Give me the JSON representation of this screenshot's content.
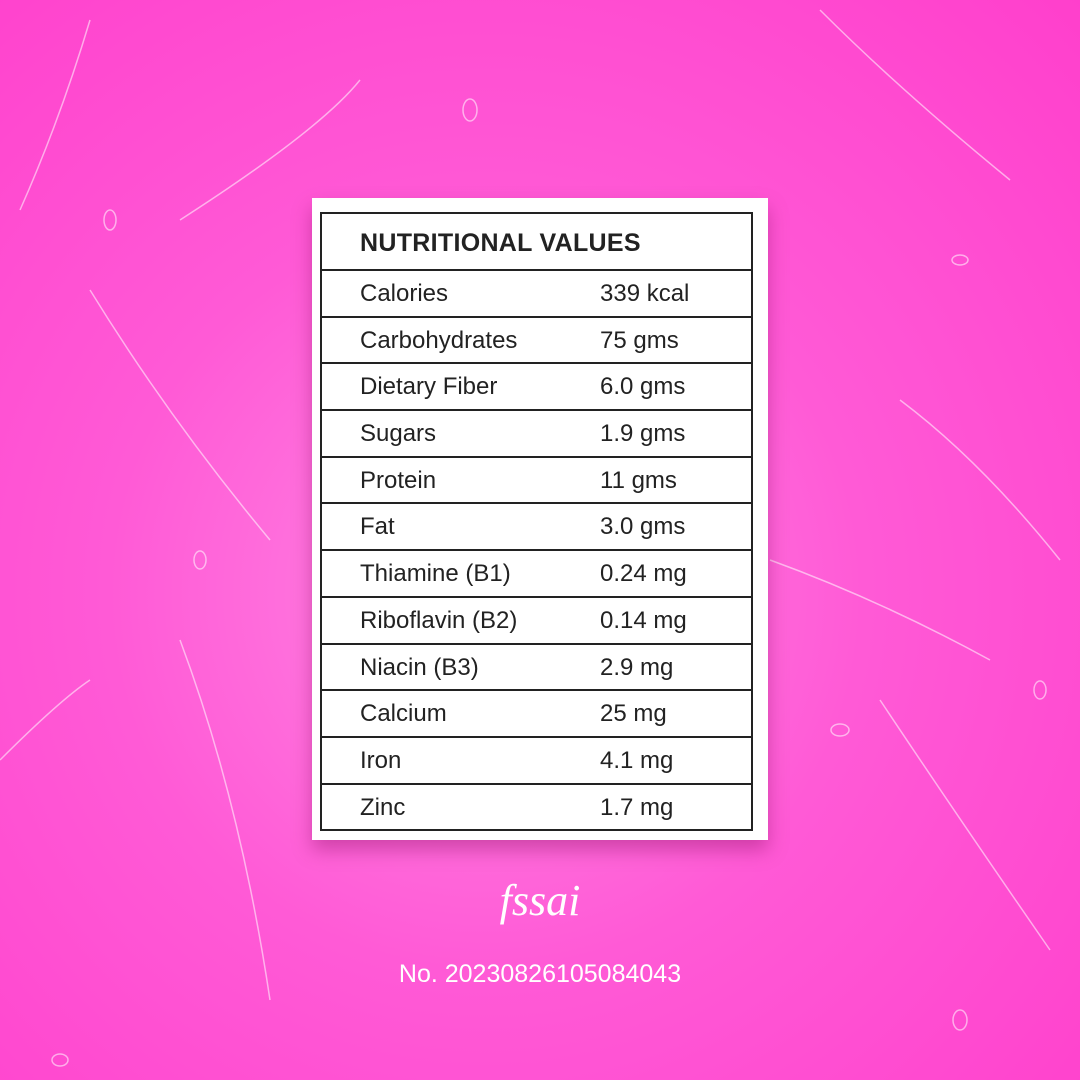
{
  "table": {
    "title": "NUTRITIONAL VALUES",
    "rows": [
      [
        "Calories",
        "339 kcal"
      ],
      [
        "Carbohydrates",
        "75 gms"
      ],
      [
        "Dietary Fiber",
        "6.0 gms"
      ],
      [
        "Sugars",
        "1.9 gms"
      ],
      [
        "Protein",
        "11 gms"
      ],
      [
        "Fat",
        "3.0 gms"
      ],
      [
        "Thiamine (B1)",
        "0.24 mg"
      ],
      [
        "Riboflavin (B2)",
        "0.14 mg"
      ],
      [
        "Niacin (B3)",
        "2.9 mg"
      ],
      [
        "Calcium",
        "25 mg"
      ],
      [
        "Iron",
        "4.1 mg"
      ],
      [
        "Zinc",
        "1.7 mg"
      ]
    ]
  },
  "footer": {
    "logo": "fssai",
    "license": "No. 20230826105084043"
  }
}
